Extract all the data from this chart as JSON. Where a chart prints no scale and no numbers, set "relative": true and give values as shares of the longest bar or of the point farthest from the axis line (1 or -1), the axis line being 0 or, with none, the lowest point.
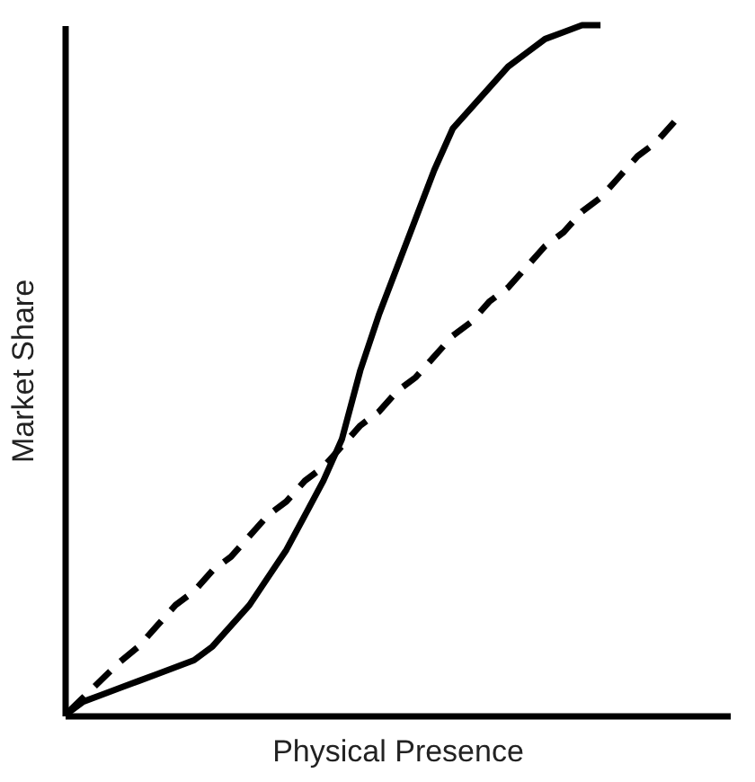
{
  "chart_data": {
    "type": "line",
    "relative": true,
    "xlabel": "Physical Presence",
    "ylabel": "Market Share",
    "tick_labels": false,
    "grid": false,
    "legend": false,
    "categories": [
      null,
      null,
      null,
      null,
      null,
      null,
      null,
      null,
      null,
      null,
      null,
      null,
      null,
      null,
      null,
      null,
      null,
      null,
      null,
      null,
      null,
      null,
      null,
      null,
      null,
      null,
      null,
      null,
      null,
      null,
      null,
      null,
      null,
      null,
      null,
      null,
      null
    ],
    "series": [
      {
        "color": "#000000",
        "line_style": "solid",
        "values": [
          0.0,
          0.02,
          0.03,
          0.04,
          0.05,
          0.06,
          0.07,
          0.08,
          0.1,
          0.13,
          0.16,
          0.2,
          0.24,
          0.29,
          0.34,
          0.4,
          0.5,
          0.58,
          0.65,
          0.72,
          0.79,
          0.85,
          0.88,
          0.91,
          0.94,
          0.96,
          0.98,
          0.99,
          1.0,
          1.0,
          null,
          null,
          null,
          null,
          null,
          null,
          null
        ]
      },
      {
        "color": "#000000",
        "line_style": "dashed",
        "values": [
          0.0,
          0.026,
          0.052,
          0.078,
          0.1,
          0.13,
          0.16,
          0.18,
          0.21,
          0.23,
          0.26,
          0.29,
          0.31,
          0.34,
          0.36,
          0.39,
          0.42,
          0.44,
          0.47,
          0.49,
          0.52,
          0.55,
          0.57,
          0.6,
          0.62,
          0.65,
          0.68,
          0.7,
          0.73,
          0.75,
          0.78,
          0.81,
          0.83,
          0.86,
          null,
          null,
          null
        ]
      }
    ]
  }
}
